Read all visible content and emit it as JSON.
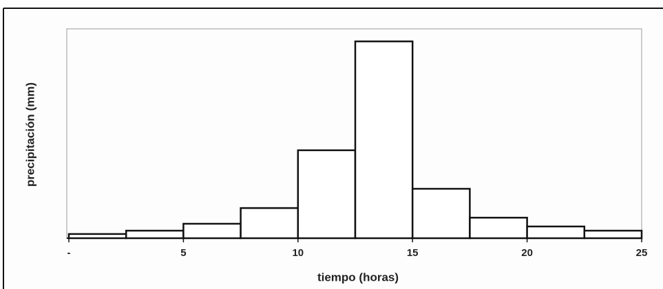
{
  "chart_data": {
    "type": "histogram",
    "x_label": "tiempo (horas)",
    "y_label": "precipitación (mm)",
    "bins": [
      0,
      2.5,
      5,
      7.5,
      10,
      12.5,
      15,
      17.5,
      20,
      22.5,
      25
    ],
    "values": [
      2,
      3.6,
      6.9,
      14.4,
      42,
      94,
      23.6,
      9.8,
      5.6,
      3.6
    ],
    "color": "#ffffff",
    "xlim": [
      0,
      25
    ],
    "xticks": [
      {
        "value": 0,
        "label": "-"
      },
      5,
      10,
      15,
      20,
      25
    ],
    "ylim": [
      0,
      100
    ]
  }
}
